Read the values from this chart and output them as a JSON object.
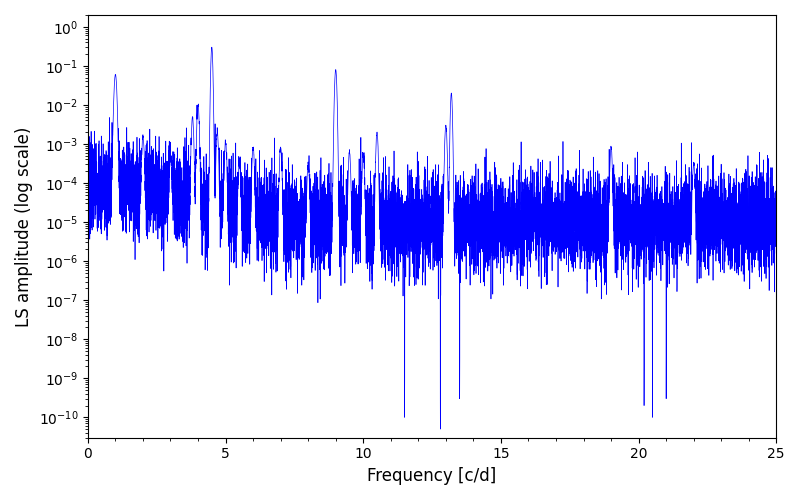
{
  "line_color": "#0000ff",
  "xlabel": "Frequency [c/d]",
  "ylabel": "LS amplitude (log scale)",
  "xlim": [
    0,
    25
  ],
  "ylim": [
    3e-11,
    2.0
  ],
  "yscale": "log",
  "line_width": 0.5,
  "figsize": [
    8.0,
    5.0
  ],
  "dpi": 100,
  "facecolor": "#ffffff",
  "tick_labelsize": 10,
  "label_fontsize": 12,
  "freq_min": 0.0,
  "freq_max": 25.0,
  "n_points": 10000,
  "seed": 7
}
